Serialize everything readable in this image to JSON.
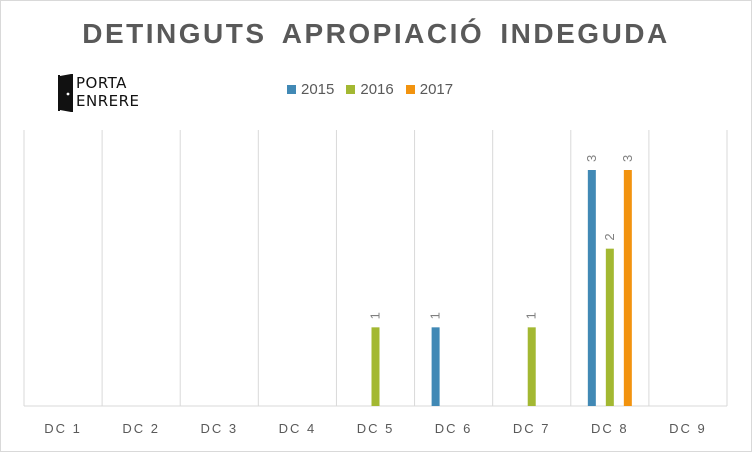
{
  "chart_data": {
    "type": "bar",
    "title": "DETINGUTS APROPIACIÓ INDEGUDA",
    "categories": [
      "DC 1",
      "DC 2",
      "DC 3",
      "DC 4",
      "DC 5",
      "DC 6",
      "DC 7",
      "DC 8",
      "DC 9"
    ],
    "series": [
      {
        "name": "2015",
        "color": "#4189b5",
        "values": [
          0,
          0,
          0,
          0,
          0,
          1,
          0,
          3,
          0
        ]
      },
      {
        "name": "2016",
        "color": "#a3b832",
        "values": [
          0,
          0,
          0,
          0,
          1,
          0,
          1,
          2,
          0
        ]
      },
      {
        "name": "2017",
        "color": "#f2930f",
        "values": [
          0,
          0,
          0,
          0,
          0,
          0,
          0,
          3,
          0
        ]
      }
    ],
    "ylim": [
      0,
      3
    ],
    "grid": "vertical",
    "legend": "top-center",
    "data_labels": true
  },
  "logo": {
    "line1": "PORTA",
    "line2": "ENRERE"
  }
}
